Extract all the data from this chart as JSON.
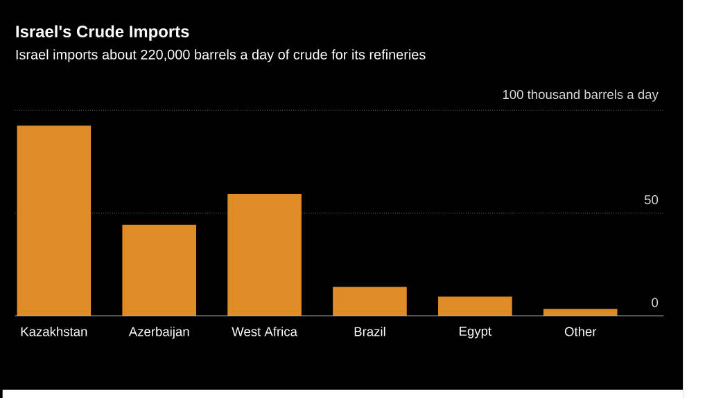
{
  "chart_data": {
    "type": "bar",
    "title": "Israel's Crude Imports",
    "subtitle": "Israel imports about 220,000 barrels a day of crude for its refineries",
    "categories": [
      "Kazakhstan",
      "Azerbaijan",
      "West Africa",
      "Brazil",
      "Egypt",
      "Other"
    ],
    "values": [
      92.6,
      44.3,
      59.4,
      14.1,
      9.4,
      3.4
    ],
    "color": "#df8c27",
    "ylim": [
      0,
      100
    ],
    "yticks": [
      0,
      50,
      {
        "value": 100,
        "label": "100 thousand barrels a day"
      }
    ],
    "grid": "y"
  }
}
